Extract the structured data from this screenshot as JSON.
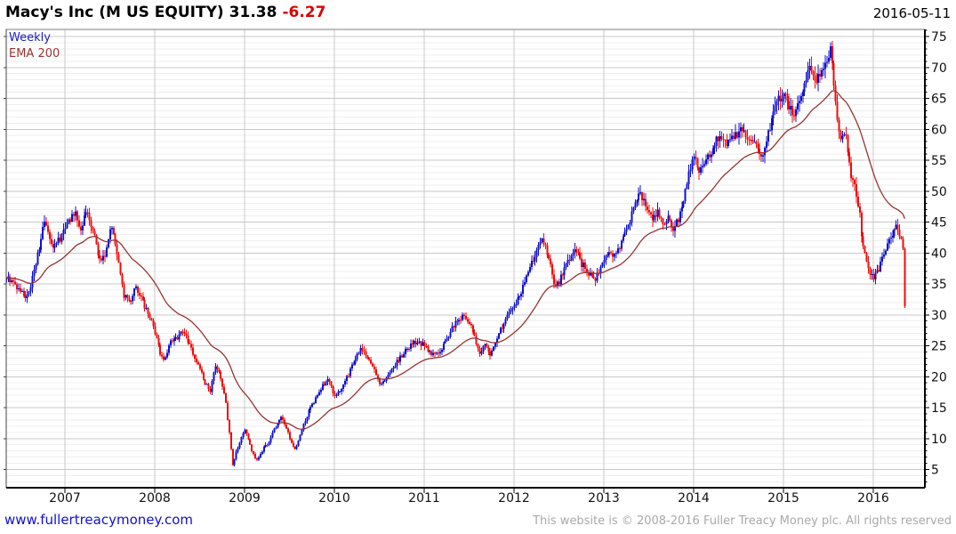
{
  "header": {
    "instrument": "Macy's Inc (M US EQUITY)",
    "price": "31.38",
    "change": "-6.27",
    "date": "2016-05-11"
  },
  "legend": {
    "timeframe": "Weekly",
    "overlay": "EMA 200"
  },
  "footer": {
    "link": "www.fullertreacymoney.com",
    "copyright": "This website is © 2008-2016 Fuller Treacy Money plc. All rights reserved"
  },
  "colors": {
    "up": "#1010cc",
    "down": "#ee0c0c",
    "ema": "#993333",
    "change_text": "#dd0000",
    "legend_weekly": "#2222bb",
    "legend_ema": "#993333",
    "grid_major": "#c8c8c8",
    "grid_minor": "#efefef",
    "axis_dark": "#000000",
    "axis_light": "#888888",
    "tick_label": "#111111",
    "link": "#1111cc",
    "copyright": "#a9a9a9"
  },
  "chart_data": {
    "type": "candlestick",
    "timeframe": "weekly",
    "title": "Macy's Inc (M US EQUITY)",
    "date": "2016-05-11",
    "last_close": 31.38,
    "change": -6.27,
    "legend": [
      "Weekly",
      "EMA 200"
    ],
    "overlay": {
      "name": "EMA 200",
      "period_weeks": 40
    },
    "y_axis_side": "right",
    "ylim": [
      2,
      76.5
    ],
    "y_ticks": [
      5,
      10,
      15,
      20,
      25,
      30,
      35,
      40,
      45,
      50,
      55,
      60,
      65,
      70,
      75
    ],
    "x_ticks": [
      2007,
      2008,
      2009,
      2010,
      2011,
      2012,
      2013,
      2014,
      2015,
      2016
    ],
    "x_range": [
      2006.35,
      2016.574
    ],
    "grid": {
      "minor_step": 1,
      "major_step": 5,
      "vertical": "yearly"
    },
    "close_anchors": [
      [
        2006.35,
        36.5
      ],
      [
        2006.42,
        35.0
      ],
      [
        2006.5,
        34.0
      ],
      [
        2006.56,
        32.8
      ],
      [
        2006.62,
        34.5
      ],
      [
        2006.7,
        40.0
      ],
      [
        2006.77,
        45.0
      ],
      [
        2006.82,
        43.0
      ],
      [
        2006.88,
        40.8
      ],
      [
        2006.95,
        42.5
      ],
      [
        2007.05,
        45.5
      ],
      [
        2007.12,
        46.3
      ],
      [
        2007.17,
        44.0
      ],
      [
        2007.24,
        46.8
      ],
      [
        2007.3,
        44.5
      ],
      [
        2007.37,
        40.0
      ],
      [
        2007.44,
        38.8
      ],
      [
        2007.51,
        45.0
      ],
      [
        2007.57,
        41.0
      ],
      [
        2007.62,
        36.0
      ],
      [
        2007.66,
        33.0
      ],
      [
        2007.72,
        32.0
      ],
      [
        2007.78,
        34.5
      ],
      [
        2007.85,
        32.5
      ],
      [
        2007.92,
        30.5
      ],
      [
        2008.0,
        27.5
      ],
      [
        2008.06,
        24.0
      ],
      [
        2008.1,
        22.5
      ],
      [
        2008.17,
        25.5
      ],
      [
        2008.24,
        26.0
      ],
      [
        2008.31,
        27.5
      ],
      [
        2008.38,
        25.5
      ],
      [
        2008.45,
        23.0
      ],
      [
        2008.52,
        20.5
      ],
      [
        2008.58,
        18.5
      ],
      [
        2008.62,
        17.5
      ],
      [
        2008.67,
        21.8
      ],
      [
        2008.72,
        21.0
      ],
      [
        2008.78,
        17.0
      ],
      [
        2008.83,
        11.0
      ],
      [
        2008.87,
        5.8
      ],
      [
        2008.9,
        7.5
      ],
      [
        2008.95,
        9.5
      ],
      [
        2009.0,
        11.3
      ],
      [
        2009.04,
        10.0
      ],
      [
        2009.08,
        8.0
      ],
      [
        2009.13,
        6.3
      ],
      [
        2009.19,
        8.0
      ],
      [
        2009.27,
        9.5
      ],
      [
        2009.35,
        12.0
      ],
      [
        2009.42,
        13.5
      ],
      [
        2009.48,
        11.0
      ],
      [
        2009.53,
        9.0
      ],
      [
        2009.57,
        8.2
      ],
      [
        2009.65,
        12.0
      ],
      [
        2009.72,
        14.5
      ],
      [
        2009.8,
        16.5
      ],
      [
        2009.88,
        18.8
      ],
      [
        2009.93,
        19.5
      ],
      [
        2010.0,
        16.8
      ],
      [
        2010.08,
        18.0
      ],
      [
        2010.16,
        20.5
      ],
      [
        2010.24,
        23.0
      ],
      [
        2010.3,
        24.8
      ],
      [
        2010.36,
        23.5
      ],
      [
        2010.44,
        21.5
      ],
      [
        2010.5,
        18.8
      ],
      [
        2010.57,
        19.5
      ],
      [
        2010.65,
        21.5
      ],
      [
        2010.73,
        23.0
      ],
      [
        2010.82,
        24.8
      ],
      [
        2010.9,
        25.5
      ],
      [
        2011.0,
        25.2
      ],
      [
        2011.08,
        23.8
      ],
      [
        2011.17,
        24.0
      ],
      [
        2011.26,
        26.5
      ],
      [
        2011.34,
        28.5
      ],
      [
        2011.42,
        29.8
      ],
      [
        2011.5,
        28.8
      ],
      [
        2011.57,
        26.0
      ],
      [
        2011.63,
        23.5
      ],
      [
        2011.68,
        25.5
      ],
      [
        2011.73,
        23.0
      ],
      [
        2011.8,
        26.0
      ],
      [
        2011.88,
        28.5
      ],
      [
        2011.96,
        30.5
      ],
      [
        2012.04,
        32.5
      ],
      [
        2012.1,
        34.5
      ],
      [
        2012.17,
        37.5
      ],
      [
        2012.25,
        40.5
      ],
      [
        2012.32,
        42.0
      ],
      [
        2012.39,
        39.5
      ],
      [
        2012.46,
        34.2
      ],
      [
        2012.54,
        36.5
      ],
      [
        2012.61,
        39.0
      ],
      [
        2012.68,
        41.2
      ],
      [
        2012.74,
        38.5
      ],
      [
        2012.82,
        37.0
      ],
      [
        2012.9,
        35.2
      ],
      [
        2012.97,
        38.0
      ],
      [
        2013.05,
        39.5
      ],
      [
        2013.13,
        40.0
      ],
      [
        2013.22,
        42.5
      ],
      [
        2013.31,
        46.0
      ],
      [
        2013.4,
        49.5
      ],
      [
        2013.47,
        48.0
      ],
      [
        2013.55,
        45.5
      ],
      [
        2013.6,
        46.5
      ],
      [
        2013.67,
        44.0
      ],
      [
        2013.72,
        46.0
      ],
      [
        2013.78,
        43.8
      ],
      [
        2013.86,
        46.5
      ],
      [
        2013.93,
        52.0
      ],
      [
        2014.0,
        56.0
      ],
      [
        2014.06,
        52.5
      ],
      [
        2014.14,
        55.0
      ],
      [
        2014.22,
        57.0
      ],
      [
        2014.3,
        59.5
      ],
      [
        2014.38,
        57.8
      ],
      [
        2014.46,
        59.0
      ],
      [
        2014.54,
        60.0
      ],
      [
        2014.62,
        58.5
      ],
      [
        2014.69,
        57.5
      ],
      [
        2014.76,
        55.8
      ],
      [
        2014.84,
        60.0
      ],
      [
        2014.92,
        64.0
      ],
      [
        2015.0,
        66.0
      ],
      [
        2015.07,
        63.5
      ],
      [
        2015.13,
        62.5
      ],
      [
        2015.21,
        66.0
      ],
      [
        2015.29,
        69.5
      ],
      [
        2015.37,
        67.5
      ],
      [
        2015.44,
        70.0
      ],
      [
        2015.52,
        73.0
      ],
      [
        2015.57,
        66.5
      ],
      [
        2015.63,
        58.0
      ],
      [
        2015.69,
        59.5
      ],
      [
        2015.74,
        53.5
      ],
      [
        2015.8,
        50.0
      ],
      [
        2015.84,
        47.5
      ],
      [
        2015.88,
        41.0
      ],
      [
        2015.94,
        38.0
      ],
      [
        2016.0,
        35.5
      ],
      [
        2016.06,
        37.5
      ],
      [
        2016.13,
        40.5
      ],
      [
        2016.2,
        43.0
      ],
      [
        2016.27,
        44.5
      ],
      [
        2016.31,
        42.0
      ],
      [
        2016.34,
        39.5
      ],
      [
        2016.36,
        31.38
      ]
    ]
  }
}
